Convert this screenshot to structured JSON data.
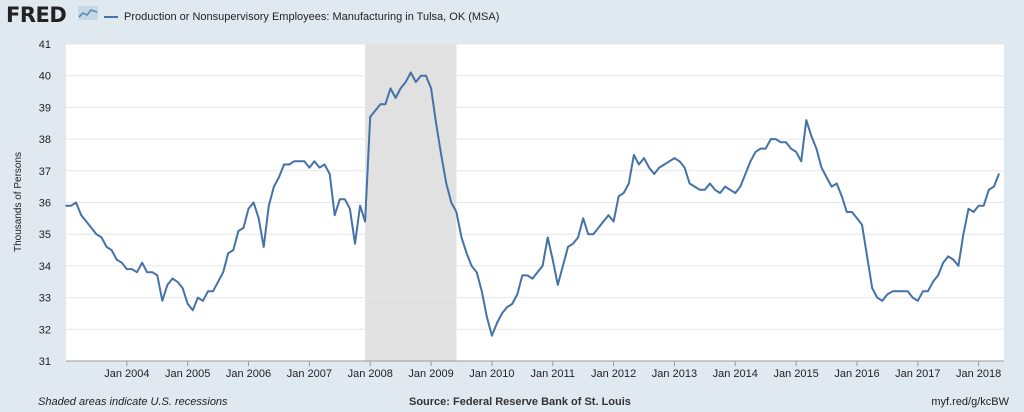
{
  "header": {
    "logo_text": "FRED",
    "legend_label": "Production or Nonsupervisory Employees: Manufacturing in Tulsa, OK (MSA)",
    "series_color": "#4572a7"
  },
  "footer": {
    "note": "Shaded areas indicate U.S. recessions",
    "source": "Source: Federal Reserve Bank of St. Louis",
    "url": "myf.red/g/kcBW"
  },
  "chart_data": {
    "type": "line",
    "title": "",
    "xlabel": "",
    "ylabel": "Thousands of Persons",
    "ylim": [
      31,
      41
    ],
    "yticks": [
      31,
      32,
      33,
      34,
      35,
      36,
      37,
      38,
      39,
      40,
      41
    ],
    "xlim": [
      "2003-01",
      "2018-06"
    ],
    "xticks": [
      {
        "label": "Jan 2004",
        "date": "2004-01"
      },
      {
        "label": "Jan 2005",
        "date": "2005-01"
      },
      {
        "label": "Jan 2006",
        "date": "2006-01"
      },
      {
        "label": "Jan 2007",
        "date": "2007-01"
      },
      {
        "label": "Jan 2008",
        "date": "2008-01"
      },
      {
        "label": "Jan 2009",
        "date": "2009-01"
      },
      {
        "label": "Jan 2010",
        "date": "2010-01"
      },
      {
        "label": "Jan 2011",
        "date": "2011-01"
      },
      {
        "label": "Jan 2012",
        "date": "2012-01"
      },
      {
        "label": "Jan 2013",
        "date": "2013-01"
      },
      {
        "label": "Jan 2014",
        "date": "2014-01"
      },
      {
        "label": "Jan 2015",
        "date": "2015-01"
      },
      {
        "label": "Jan 2016",
        "date": "2016-01"
      },
      {
        "label": "Jan 2017",
        "date": "2017-01"
      },
      {
        "label": "Jan 2018",
        "date": "2018-01"
      }
    ],
    "recessions": [
      {
        "start": "2007-12",
        "end": "2009-06"
      }
    ],
    "recession_color": "#e1e1e1",
    "grid": true,
    "series": [
      {
        "color": "#4572a7",
        "points": [
          [
            "2003-01",
            35.9
          ],
          [
            "2003-02",
            35.9
          ],
          [
            "2003-03",
            36.0
          ],
          [
            "2003-04",
            35.6
          ],
          [
            "2003-05",
            35.4
          ],
          [
            "2003-06",
            35.2
          ],
          [
            "2003-07",
            35.0
          ],
          [
            "2003-08",
            34.9
          ],
          [
            "2003-09",
            34.6
          ],
          [
            "2003-10",
            34.5
          ],
          [
            "2003-11",
            34.2
          ],
          [
            "2003-12",
            34.1
          ],
          [
            "2004-01",
            33.9
          ],
          [
            "2004-02",
            33.9
          ],
          [
            "2004-03",
            33.8
          ],
          [
            "2004-04",
            34.1
          ],
          [
            "2004-05",
            33.8
          ],
          [
            "2004-06",
            33.8
          ],
          [
            "2004-07",
            33.7
          ],
          [
            "2004-08",
            32.9
          ],
          [
            "2004-09",
            33.4
          ],
          [
            "2004-10",
            33.6
          ],
          [
            "2004-11",
            33.5
          ],
          [
            "2004-12",
            33.3
          ],
          [
            "2005-01",
            32.8
          ],
          [
            "2005-02",
            32.6
          ],
          [
            "2005-03",
            33.0
          ],
          [
            "2005-04",
            32.9
          ],
          [
            "2005-05",
            33.2
          ],
          [
            "2005-06",
            33.2
          ],
          [
            "2005-07",
            33.5
          ],
          [
            "2005-08",
            33.8
          ],
          [
            "2005-09",
            34.4
          ],
          [
            "2005-10",
            34.5
          ],
          [
            "2005-11",
            35.1
          ],
          [
            "2005-12",
            35.2
          ],
          [
            "2006-01",
            35.8
          ],
          [
            "2006-02",
            36.0
          ],
          [
            "2006-03",
            35.5
          ],
          [
            "2006-04",
            34.6
          ],
          [
            "2006-05",
            35.9
          ],
          [
            "2006-06",
            36.5
          ],
          [
            "2006-07",
            36.8
          ],
          [
            "2006-08",
            37.2
          ],
          [
            "2006-09",
            37.2
          ],
          [
            "2006-10",
            37.3
          ],
          [
            "2006-11",
            37.3
          ],
          [
            "2006-12",
            37.3
          ],
          [
            "2007-01",
            37.1
          ],
          [
            "2007-02",
            37.3
          ],
          [
            "2007-03",
            37.1
          ],
          [
            "2007-04",
            37.2
          ],
          [
            "2007-05",
            36.9
          ],
          [
            "2007-06",
            35.6
          ],
          [
            "2007-07",
            36.1
          ],
          [
            "2007-08",
            36.1
          ],
          [
            "2007-09",
            35.8
          ],
          [
            "2007-10",
            34.7
          ],
          [
            "2007-11",
            35.9
          ],
          [
            "2007-12",
            35.4
          ],
          [
            "2008-01",
            38.7
          ],
          [
            "2008-02",
            38.9
          ],
          [
            "2008-03",
            39.1
          ],
          [
            "2008-04",
            39.1
          ],
          [
            "2008-05",
            39.6
          ],
          [
            "2008-06",
            39.3
          ],
          [
            "2008-07",
            39.6
          ],
          [
            "2008-08",
            39.8
          ],
          [
            "2008-09",
            40.1
          ],
          [
            "2008-10",
            39.8
          ],
          [
            "2008-11",
            40.0
          ],
          [
            "2008-12",
            40.0
          ],
          [
            "2009-01",
            39.6
          ],
          [
            "2009-02",
            38.5
          ],
          [
            "2009-03",
            37.5
          ],
          [
            "2009-04",
            36.6
          ],
          [
            "2009-05",
            36.0
          ],
          [
            "2009-06",
            35.7
          ],
          [
            "2009-07",
            34.9
          ],
          [
            "2009-08",
            34.4
          ],
          [
            "2009-09",
            34.0
          ],
          [
            "2009-10",
            33.8
          ],
          [
            "2009-11",
            33.2
          ],
          [
            "2009-12",
            32.4
          ],
          [
            "2010-01",
            31.8
          ],
          [
            "2010-02",
            32.2
          ],
          [
            "2010-03",
            32.5
          ],
          [
            "2010-04",
            32.7
          ],
          [
            "2010-05",
            32.8
          ],
          [
            "2010-06",
            33.1
          ],
          [
            "2010-07",
            33.7
          ],
          [
            "2010-08",
            33.7
          ],
          [
            "2010-09",
            33.6
          ],
          [
            "2010-10",
            33.8
          ],
          [
            "2010-11",
            34.0
          ],
          [
            "2010-12",
            34.9
          ],
          [
            "2011-01",
            34.2
          ],
          [
            "2011-02",
            33.4
          ],
          [
            "2011-03",
            34.0
          ],
          [
            "2011-04",
            34.6
          ],
          [
            "2011-05",
            34.7
          ],
          [
            "2011-06",
            34.9
          ],
          [
            "2011-07",
            35.5
          ],
          [
            "2011-08",
            35.0
          ],
          [
            "2011-09",
            35.0
          ],
          [
            "2011-10",
            35.2
          ],
          [
            "2011-11",
            35.4
          ],
          [
            "2011-12",
            35.6
          ],
          [
            "2012-01",
            35.4
          ],
          [
            "2012-02",
            36.2
          ],
          [
            "2012-03",
            36.3
          ],
          [
            "2012-04",
            36.6
          ],
          [
            "2012-05",
            37.5
          ],
          [
            "2012-06",
            37.2
          ],
          [
            "2012-07",
            37.4
          ],
          [
            "2012-08",
            37.1
          ],
          [
            "2012-09",
            36.9
          ],
          [
            "2012-10",
            37.1
          ],
          [
            "2012-11",
            37.2
          ],
          [
            "2012-12",
            37.3
          ],
          [
            "2013-01",
            37.4
          ],
          [
            "2013-02",
            37.3
          ],
          [
            "2013-03",
            37.1
          ],
          [
            "2013-04",
            36.6
          ],
          [
            "2013-05",
            36.5
          ],
          [
            "2013-06",
            36.4
          ],
          [
            "2013-07",
            36.4
          ],
          [
            "2013-08",
            36.6
          ],
          [
            "2013-09",
            36.4
          ],
          [
            "2013-10",
            36.3
          ],
          [
            "2013-11",
            36.5
          ],
          [
            "2013-12",
            36.4
          ],
          [
            "2014-01",
            36.3
          ],
          [
            "2014-02",
            36.5
          ],
          [
            "2014-03",
            36.9
          ],
          [
            "2014-04",
            37.3
          ],
          [
            "2014-05",
            37.6
          ],
          [
            "2014-06",
            37.7
          ],
          [
            "2014-07",
            37.7
          ],
          [
            "2014-08",
            38.0
          ],
          [
            "2014-09",
            38.0
          ],
          [
            "2014-10",
            37.9
          ],
          [
            "2014-11",
            37.9
          ],
          [
            "2014-12",
            37.7
          ],
          [
            "2015-01",
            37.6
          ],
          [
            "2015-02",
            37.3
          ],
          [
            "2015-03",
            38.6
          ],
          [
            "2015-04",
            38.1
          ],
          [
            "2015-05",
            37.7
          ],
          [
            "2015-06",
            37.1
          ],
          [
            "2015-07",
            36.8
          ],
          [
            "2015-08",
            36.5
          ],
          [
            "2015-09",
            36.6
          ],
          [
            "2015-10",
            36.2
          ],
          [
            "2015-11",
            35.7
          ],
          [
            "2015-12",
            35.7
          ],
          [
            "2016-01",
            35.5
          ],
          [
            "2016-02",
            35.3
          ],
          [
            "2016-03",
            34.3
          ],
          [
            "2016-04",
            33.3
          ],
          [
            "2016-05",
            33.0
          ],
          [
            "2016-06",
            32.9
          ],
          [
            "2016-07",
            33.1
          ],
          [
            "2016-08",
            33.2
          ],
          [
            "2016-09",
            33.2
          ],
          [
            "2016-10",
            33.2
          ],
          [
            "2016-11",
            33.2
          ],
          [
            "2016-12",
            33.0
          ],
          [
            "2017-01",
            32.9
          ],
          [
            "2017-02",
            33.2
          ],
          [
            "2017-03",
            33.2
          ],
          [
            "2017-04",
            33.5
          ],
          [
            "2017-05",
            33.7
          ],
          [
            "2017-06",
            34.1
          ],
          [
            "2017-07",
            34.3
          ],
          [
            "2017-08",
            34.2
          ],
          [
            "2017-09",
            34.0
          ],
          [
            "2017-10",
            35.0
          ],
          [
            "2017-11",
            35.8
          ],
          [
            "2017-12",
            35.7
          ],
          [
            "2018-01",
            35.9
          ],
          [
            "2018-02",
            35.9
          ],
          [
            "2018-03",
            36.4
          ],
          [
            "2018-04",
            36.5
          ],
          [
            "2018-05",
            36.9
          ]
        ]
      }
    ]
  }
}
